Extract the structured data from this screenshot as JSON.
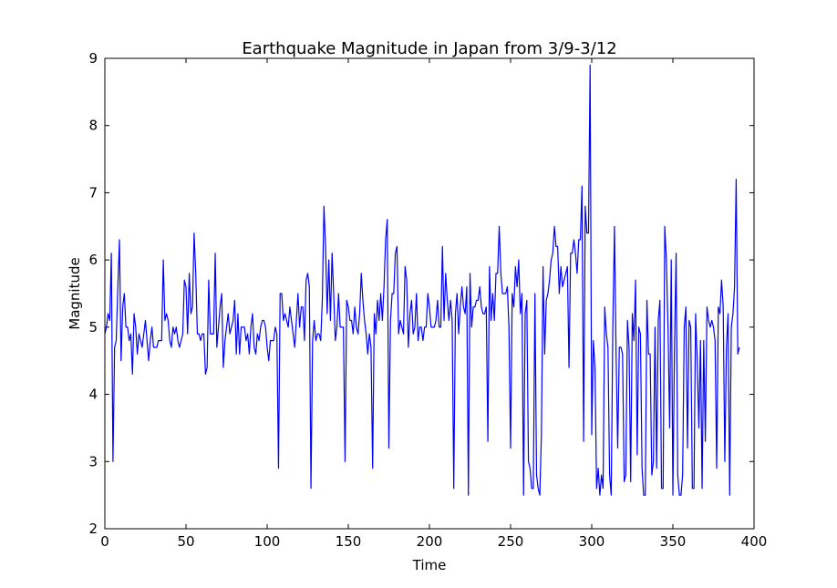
{
  "chart_data": {
    "type": "line",
    "title": "Earthquake Magnitude in Japan from 3/9-3/12",
    "xlabel": "Time",
    "ylabel": "Magnitude",
    "xlim": [
      0,
      400
    ],
    "ylim": [
      2,
      9
    ],
    "xticks": [
      0,
      50,
      100,
      150,
      200,
      250,
      300,
      350,
      400
    ],
    "yticks": [
      2,
      3,
      4,
      5,
      6,
      7,
      8,
      9
    ],
    "grid": false,
    "series": [
      {
        "color": "#0000ff",
        "x_start": 0,
        "x_step": 1,
        "values": [
          4.9,
          5.0,
          5.2,
          5.1,
          6.1,
          3.0,
          4.7,
          4.8,
          5.6,
          6.3,
          4.5,
          5.3,
          5.5,
          5.0,
          5.0,
          4.8,
          4.9,
          4.3,
          5.2,
          5.0,
          4.6,
          4.9,
          4.8,
          4.7,
          4.9,
          5.1,
          4.8,
          4.5,
          4.8,
          5.0,
          4.7,
          4.7,
          4.7,
          4.8,
          4.8,
          4.8,
          6.0,
          5.1,
          5.2,
          5.1,
          4.8,
          4.7,
          5.0,
          4.9,
          5.0,
          4.8,
          4.7,
          4.8,
          4.9,
          5.7,
          5.6,
          4.9,
          5.8,
          5.2,
          5.3,
          6.4,
          5.8,
          4.9,
          4.9,
          4.8,
          4.9,
          4.9,
          4.3,
          4.4,
          5.7,
          4.9,
          4.9,
          4.9,
          6.1,
          4.7,
          5.0,
          5.3,
          5.5,
          4.4,
          4.8,
          5.0,
          5.2,
          4.9,
          5.0,
          5.1,
          5.4,
          4.6,
          5.2,
          4.6,
          5.0,
          5.0,
          5.0,
          4.8,
          4.9,
          4.6,
          5.0,
          5.2,
          4.7,
          4.6,
          4.9,
          4.8,
          5.0,
          5.1,
          5.1,
          5.0,
          4.7,
          4.5,
          4.8,
          4.8,
          4.8,
          5.0,
          4.9,
          2.9,
          5.5,
          5.5,
          5.1,
          5.2,
          5.1,
          5.0,
          5.3,
          5.1,
          4.9,
          4.7,
          5.1,
          5.5,
          5.0,
          5.3,
          5.3,
          4.8,
          5.7,
          5.8,
          5.6,
          2.6,
          4.8,
          5.1,
          4.8,
          4.9,
          4.9,
          4.8,
          5.4,
          6.8,
          6.2,
          5.2,
          6.0,
          5.1,
          6.1,
          5.5,
          4.8,
          5.0,
          5.5,
          5.0,
          5.0,
          5.0,
          3.0,
          5.4,
          5.3,
          5.1,
          5.1,
          4.9,
          5.3,
          5.0,
          4.9,
          5.2,
          5.8,
          5.4,
          5.1,
          4.9,
          4.6,
          4.9,
          4.7,
          2.9,
          5.2,
          4.9,
          5.4,
          5.1,
          5.5,
          5.1,
          5.6,
          6.3,
          6.6,
          3.2,
          5.1,
          5.5,
          5.5,
          6.1,
          6.2,
          4.9,
          5.1,
          5.0,
          4.9,
          5.9,
          5.7,
          4.7,
          5.2,
          5.4,
          4.9,
          5.0,
          5.5,
          4.8,
          5.0,
          5.0,
          4.8,
          5.0,
          5.0,
          5.5,
          5.3,
          5.0,
          5.0,
          5.0,
          5.1,
          5.4,
          5.0,
          5.0,
          6.2,
          5.1,
          5.8,
          5.4,
          5.1,
          5.4,
          5.1,
          2.6,
          5.2,
          5.5,
          4.9,
          5.3,
          5.6,
          5.3,
          5.2,
          5.6,
          2.5,
          5.8,
          5.0,
          5.3,
          5.3,
          5.4,
          5.4,
          5.6,
          5.3,
          5.2,
          5.2,
          5.3,
          3.3,
          5.9,
          5.1,
          5.5,
          5.1,
          5.8,
          5.8,
          6.5,
          5.8,
          5.5,
          5.5,
          5.5,
          5.6,
          5.0,
          3.2,
          5.5,
          5.3,
          5.9,
          5.6,
          6.0,
          5.2,
          5.5,
          2.5,
          5.2,
          5.4,
          3.0,
          2.9,
          2.6,
          2.6,
          5.5,
          2.8,
          2.6,
          2.5,
          3.4,
          5.9,
          4.6,
          5.4,
          5.5,
          5.7,
          6.0,
          6.1,
          6.5,
          6.2,
          6.2,
          5.5,
          5.9,
          5.6,
          5.7,
          5.8,
          5.9,
          4.4,
          6.1,
          6.1,
          6.3,
          6.1,
          5.8,
          6.3,
          6.3,
          7.1,
          3.3,
          6.8,
          6.4,
          6.4,
          8.9,
          3.4,
          4.8,
          4.4,
          2.6,
          2.9,
          2.5,
          2.8,
          2.6,
          5.3,
          4.9,
          4.7,
          2.8,
          2.5,
          5.0,
          6.5,
          4.6,
          3.2,
          4.7,
          4.7,
          4.6,
          2.7,
          2.8,
          5.1,
          4.7,
          2.7,
          5.2,
          4.8,
          5.7,
          3.1,
          5.0,
          4.9,
          2.9,
          2.5,
          2.5,
          5.4,
          4.6,
          4.6,
          2.8,
          3.0,
          5.0,
          2.9,
          5.1,
          5.4,
          2.6,
          2.6,
          6.5,
          6.0,
          5.0,
          3.5,
          6.0,
          2.5,
          4.7,
          6.1,
          2.8,
          2.5,
          2.5,
          2.8,
          5.0,
          5.3,
          3.2,
          5.1,
          5.0,
          2.6,
          2.6,
          5.2,
          4.5,
          3.5,
          4.8,
          2.6,
          4.8,
          3.3,
          5.3,
          5.1,
          5.0,
          5.1,
          5.0,
          4.8,
          2.9,
          5.3,
          5.2,
          5.7,
          5.3,
          3.0,
          4.7,
          5.2,
          2.5,
          5.0,
          5.2,
          5.6,
          7.2,
          4.6,
          4.7
        ]
      }
    ]
  }
}
